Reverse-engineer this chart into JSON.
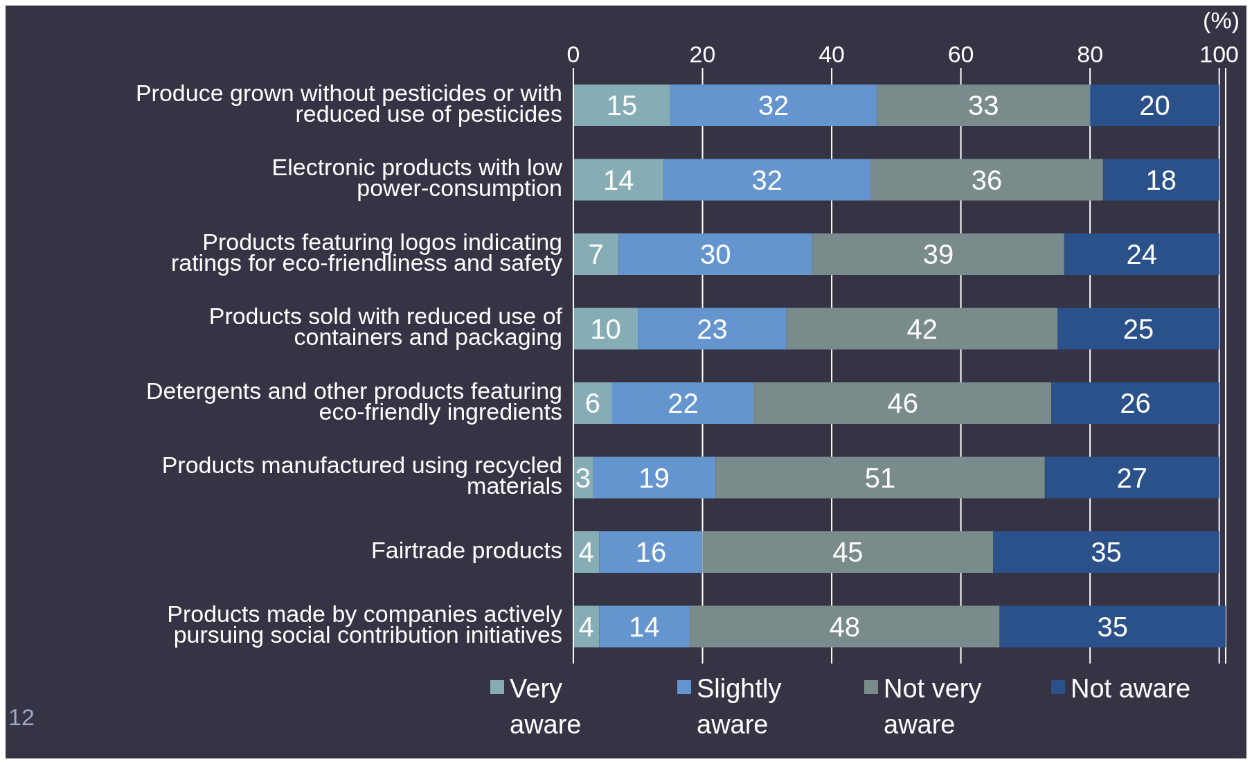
{
  "chart_data": {
    "type": "bar",
    "orientation": "horizontal",
    "stacked": true,
    "xlabel": "(%)",
    "categories": [
      "Produce grown without pesticides or with reduced use of pesticides",
      "Electronic products with low power-consumption",
      "Products featuring logos indicating ratings for eco-friendliness and safety",
      "Products sold with reduced use of containers and packaging",
      "Detergents and other products featuring eco-friendly ingredients",
      "Products manufactured using recycled materials",
      "Fairtrade products",
      "Products made by companies actively pursuing social contribution initiatives"
    ],
    "series": [
      {
        "name": "Very aware",
        "color": "#86adb5",
        "values": [
          15,
          14,
          7,
          10,
          6,
          3,
          4,
          4
        ]
      },
      {
        "name": "Slightly aware",
        "color": "#6595cf",
        "values": [
          32,
          32,
          30,
          23,
          22,
          19,
          16,
          14
        ]
      },
      {
        "name": "Not very aware",
        "color": "#7a8b8b",
        "values": [
          33,
          36,
          39,
          42,
          46,
          51,
          45,
          48
        ]
      },
      {
        "name": "Not aware",
        "color": "#2b518a",
        "values": [
          20,
          18,
          24,
          25,
          26,
          27,
          35,
          35
        ]
      }
    ],
    "xlim": [
      0,
      101
    ],
    "xticks": [
      0,
      20,
      40,
      60,
      80,
      100
    ],
    "grid": "x",
    "data_labels": true,
    "legend": "bottom",
    "annotations": [
      "12"
    ]
  }
}
